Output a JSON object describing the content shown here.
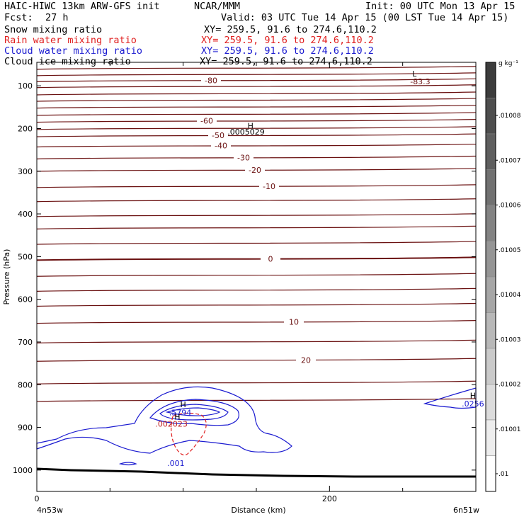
{
  "header": {
    "model": "HAIC-HIWC 13km ARW-GFS init",
    "org": "NCAR/MMM",
    "init": "Init: 00 UTC Mon 13 Apr 15",
    "fcst_label": "Fcst:",
    "fcst_value": "27 h",
    "valid": "Valid: 03 UTC Tue 14 Apr 15 (00 LST Tue 14 Apr 15)"
  },
  "fields": [
    {
      "name": "Snow mixing ratio",
      "xy": "XY= 259.5, 91.6 to 274.6,110.2",
      "color": "#000000"
    },
    {
      "name": "Rain water mixing ratio",
      "xy": "XY= 259.5, 91.6 to 274.6,110.2",
      "color": "#e02020"
    },
    {
      "name": "Cloud water mixing ratio",
      "xy": "XY= 259.5, 91.6 to 274.6,110.2",
      "color": "#1a1ad0"
    },
    {
      "name": "Cloud ice mixing ratio",
      "xy": "XY= 259.5, 91.6 to 274.6,110.2",
      "color": "#000000"
    }
  ],
  "chart_data": {
    "type": "contour",
    "xlabel": "Distance (km)",
    "ylabel": "Pressure (hPa)",
    "xlim": [
      0,
      300
    ],
    "ylim": [
      1050,
      45
    ],
    "x_ticks": [
      0,
      200
    ],
    "y_ticks": [
      100,
      200,
      300,
      400,
      500,
      600,
      700,
      800,
      900,
      1000
    ],
    "left_endpoint": "4n53w",
    "right_endpoint": "6n51w",
    "temperature_contours": [
      {
        "p": 58
      },
      {
        "p": 73
      },
      {
        "p": 87,
        "label": "-80"
      },
      {
        "p": 101
      },
      {
        "p": 118
      },
      {
        "p": 133
      },
      {
        "p": 149
      },
      {
        "p": 166
      },
      {
        "p": 182,
        "label": "-60"
      },
      {
        "p": 199
      },
      {
        "p": 216,
        "label": "-50"
      },
      {
        "p": 240,
        "label": "-40"
      },
      {
        "p": 268,
        "label": "-30"
      },
      {
        "p": 297,
        "label": "-20"
      },
      {
        "p": 335,
        "label": "-10"
      },
      {
        "p": 368
      },
      {
        "p": 403
      },
      {
        "p": 432
      },
      {
        "p": 468
      },
      {
        "p": 505,
        "label": "0"
      },
      {
        "p": 543
      },
      {
        "p": 578
      },
      {
        "p": 613
      },
      {
        "p": 653,
        "label": "10"
      },
      {
        "p": 699
      },
      {
        "p": 742,
        "label": "20"
      },
      {
        "p": 795
      },
      {
        "p": 836
      }
    ],
    "annotations": [
      {
        "text": "L",
        "x": 258,
        "p": 78
      },
      {
        "text": "-83.3",
        "x": 262,
        "p": 96
      },
      {
        "text": "H",
        "x": 146,
        "p": 200
      },
      {
        "text": ".0005029",
        "x": 143,
        "p": 214
      },
      {
        "text": "H",
        "x": 100,
        "p": 853
      },
      {
        "text": ".5794",
        "x": 98,
        "p": 872
      },
      {
        "text": "H",
        "x": 96,
        "p": 882
      },
      {
        "text": ".002023",
        "x": 92,
        "p": 898
      },
      {
        "text": ".001",
        "x": 95,
        "p": 990
      },
      {
        "text": "H",
        "x": 298,
        "p": 832
      },
      {
        "text": ".0256",
        "x": 298,
        "p": 851
      }
    ],
    "colorbar": {
      "unit": "g kg⁻¹",
      "labels": [
        ".01008",
        ".01007",
        ".01006",
        ".01005",
        ".01004",
        ".01003",
        ".01002",
        ".01001",
        ".01"
      ]
    },
    "grid": false
  }
}
